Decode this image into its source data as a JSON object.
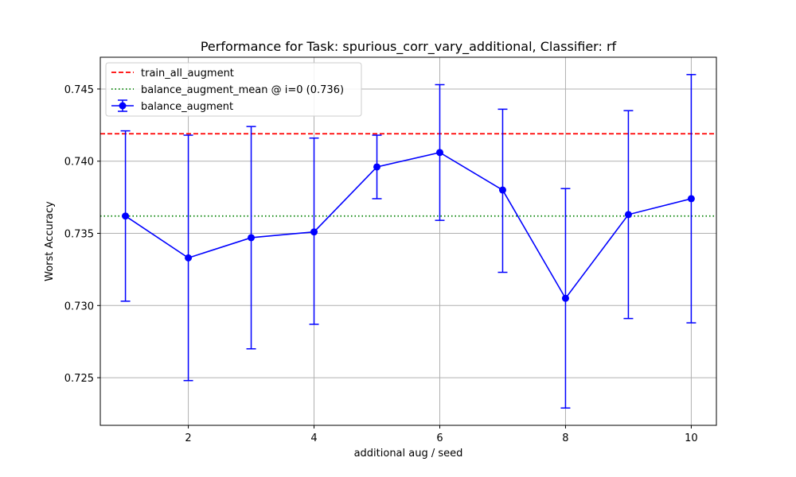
{
  "chart_data": {
    "type": "line",
    "title": "Performance for Task: spurious_corr_vary_additional, Classifier: rf",
    "xlabel": "additional aug / seed",
    "ylabel": "Worst Accuracy",
    "xlim": [
      0.6,
      10.4
    ],
    "ylim": [
      0.7217,
      0.7472
    ],
    "x_ticks": [
      2,
      4,
      6,
      8,
      10
    ],
    "y_ticks": [
      0.725,
      0.73,
      0.735,
      0.74,
      0.745
    ],
    "y_tick_labels": [
      "0.725",
      "0.730",
      "0.735",
      "0.740",
      "0.745"
    ],
    "grid": true,
    "legend_position": "top-left",
    "series": [
      {
        "name": "balance_augment",
        "color": "#0000ff",
        "marker": "circle",
        "x": [
          1,
          2,
          3,
          4,
          5,
          6,
          7,
          8,
          9,
          10
        ],
        "y": [
          0.7362,
          0.7333,
          0.7347,
          0.7351,
          0.7396,
          0.7406,
          0.738,
          0.7305,
          0.7363,
          0.7374
        ],
        "err_low": [
          0.7303,
          0.7248,
          0.727,
          0.7287,
          0.7374,
          0.7359,
          0.7323,
          0.7229,
          0.7291,
          0.7288
        ],
        "err_high": [
          0.7421,
          0.7418,
          0.7424,
          0.7416,
          0.7418,
          0.7453,
          0.7436,
          0.7381,
          0.7435,
          0.746
        ]
      }
    ],
    "reference_lines": [
      {
        "name": "train_all_augment",
        "y": 0.7419,
        "color": "#ff0000",
        "style": "dashed"
      },
      {
        "name": "balance_augment_mean @ i=0 (0.736)",
        "y": 0.7362,
        "color": "#008000",
        "style": "dotted"
      }
    ]
  }
}
